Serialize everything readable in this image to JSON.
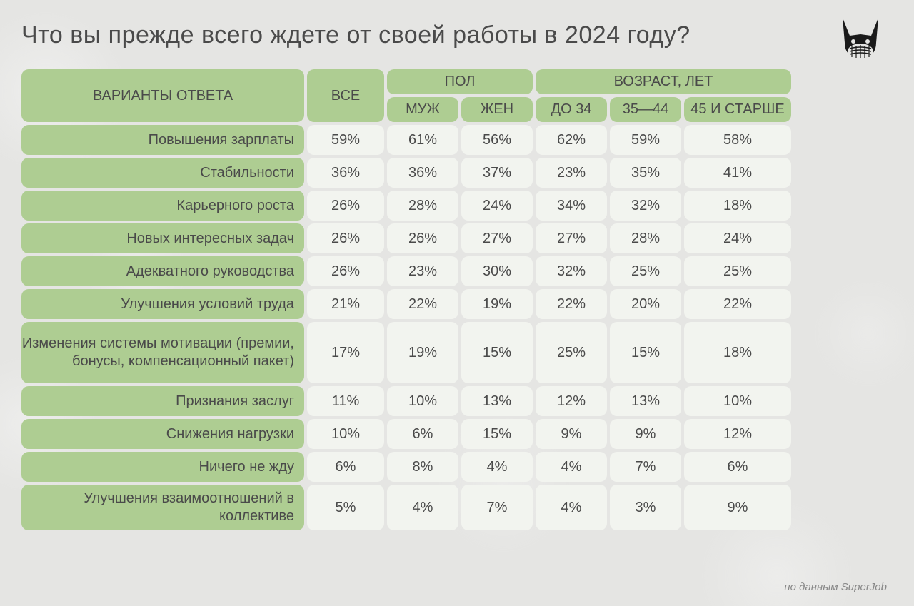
{
  "title": "Что вы прежде всего ждете от своей работы в 2024 году?",
  "footer": "по данным SuperJob",
  "colors": {
    "header_bg": "#aecd92",
    "value_bg": "#f2f4ef",
    "page_bg": "#e5e5e3",
    "text": "#4a4a4a"
  },
  "headers": {
    "answer": "ВАРИАНТЫ ОТВЕТА",
    "all": "ВСЕ",
    "sex": "ПОЛ",
    "sex_m": "МУЖ",
    "sex_f": "ЖЕН",
    "age": "ВОЗРАСТ, ЛЕТ",
    "age_1": "ДО 34",
    "age_2": "35—44",
    "age_3": "45 И СТАРШЕ"
  },
  "rows": [
    {
      "label": "Повышения зарплаты",
      "all": "59%",
      "m": "61%",
      "f": "56%",
      "a1": "62%",
      "a2": "59%",
      "a3": "58%",
      "h": "r-norm"
    },
    {
      "label": "Стабильности",
      "all": "36%",
      "m": "36%",
      "f": "37%",
      "a1": "23%",
      "a2": "35%",
      "a3": "41%",
      "h": "r-norm"
    },
    {
      "label": "Карьерного роста",
      "all": "26%",
      "m": "28%",
      "f": "24%",
      "a1": "34%",
      "a2": "32%",
      "a3": "18%",
      "h": "r-norm"
    },
    {
      "label": "Новых интересных задач",
      "all": "26%",
      "m": "26%",
      "f": "27%",
      "a1": "27%",
      "a2": "28%",
      "a3": "24%",
      "h": "r-norm"
    },
    {
      "label": "Адекватного руководства",
      "all": "26%",
      "m": "23%",
      "f": "30%",
      "a1": "32%",
      "a2": "25%",
      "a3": "25%",
      "h": "r-norm"
    },
    {
      "label": "Улучшения условий труда",
      "all": "21%",
      "m": "22%",
      "f": "19%",
      "a1": "22%",
      "a2": "20%",
      "a3": "22%",
      "h": "r-norm"
    },
    {
      "label": "Изменения системы мотивации (премии, бонусы, компенсационный пакет)",
      "all": "17%",
      "m": "19%",
      "f": "15%",
      "a1": "25%",
      "a2": "15%",
      "a3": "18%",
      "h": "r-tall"
    },
    {
      "label": "Признания заслуг",
      "all": "11%",
      "m": "10%",
      "f": "13%",
      "a1": "12%",
      "a2": "13%",
      "a3": "10%",
      "h": "r-norm"
    },
    {
      "label": "Снижения нагрузки",
      "all": "10%",
      "m": "6%",
      "f": "15%",
      "a1": "9%",
      "a2": "9%",
      "a3": "12%",
      "h": "r-norm"
    },
    {
      "label": "Ничего не жду",
      "all": "6%",
      "m": "8%",
      "f": "4%",
      "a1": "4%",
      "a2": "7%",
      "a3": "6%",
      "h": "r-norm"
    },
    {
      "label": "Улучшения взаимоотношений в коллективе",
      "all": "5%",
      "m": "4%",
      "f": "7%",
      "a1": "4%",
      "a2": "3%",
      "a3": "9%",
      "h": "r-med"
    }
  ]
}
